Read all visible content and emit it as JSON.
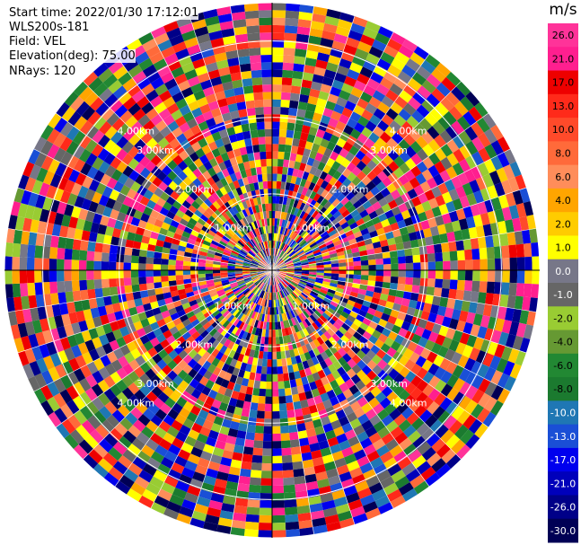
{
  "header": {
    "start_time": "Start time: 2022/01/30 17:12:01",
    "station": "WLS200s-181",
    "field": "Field: VEL",
    "elevation": "Elevation(deg): 75.00",
    "nrays": "NRays: 120"
  },
  "chart_data": {
    "type": "heatmap",
    "projection": "polar (PPI)",
    "field": "VEL",
    "unit": "m/s",
    "n_rays": 120,
    "n_gates": 36,
    "range_max_km": 3.5,
    "range_ring_labels": [
      "1.00km",
      "2.00km",
      "3.00km",
      "4.00km"
    ],
    "colorbar": {
      "label": "m/s",
      "ticks": [
        "26.0",
        "21.0",
        "17.0",
        "13.0",
        "10.0",
        "8.0",
        "6.0",
        "4.0",
        "2.0",
        "1.0",
        "0.0",
        "-1.0",
        "-2.0",
        "-4.0",
        "-6.0",
        "-8.0",
        "-10.0",
        "-13.0",
        "-17.0",
        "-21.0",
        "-26.0",
        "-30.0"
      ],
      "colors": [
        "#ff3399",
        "#ff1f8f",
        "#ee0000",
        "#ff2a1a",
        "#ff4a2a",
        "#ff6a3a",
        "#ff8d5a",
        "#ffa500",
        "#ffcc00",
        "#ffff00",
        "#777788",
        "#666666",
        "#99cc33",
        "#669933",
        "#228833",
        "#1b7a2f",
        "#1f77b4",
        "#1a4fd6",
        "#0000ee",
        "#0000bb",
        "#000088",
        "#000055"
      ]
    }
  }
}
